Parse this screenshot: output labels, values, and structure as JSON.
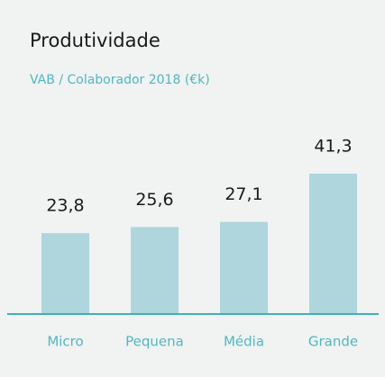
{
  "chart_data": {
    "type": "bar",
    "title": "Produtividade",
    "subtitle": "VAB / Colaborador 2018 (€k)",
    "categories": [
      "Micro",
      "Pequena",
      "Média",
      "Grande"
    ],
    "values": [
      23.8,
      25.6,
      27.1,
      41.3
    ],
    "value_labels": [
      "23,8",
      "25,6",
      "27,1",
      "41,3"
    ],
    "color": "#aed6dc"
  }
}
